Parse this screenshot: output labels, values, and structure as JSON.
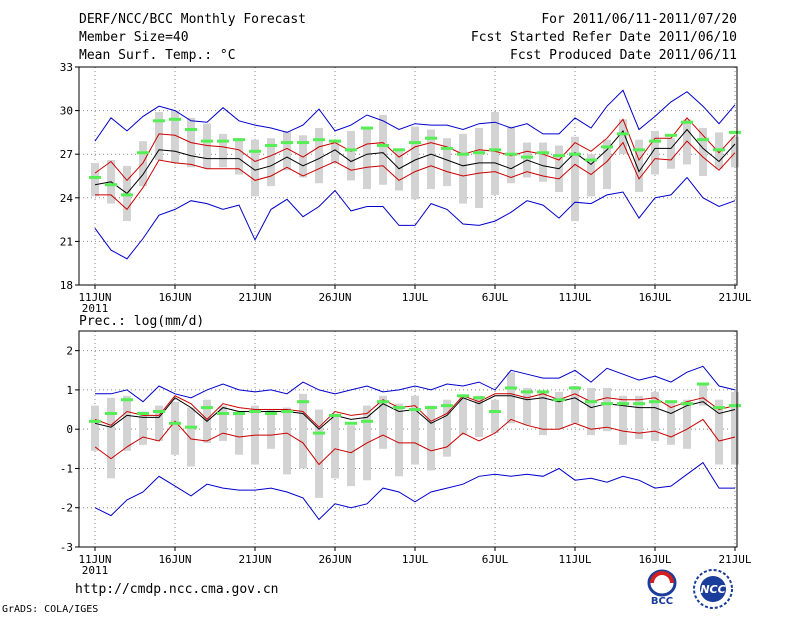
{
  "header": {
    "title": "DERF/NCC/BCC Monthly Forecast",
    "member_size": "Member Size=40",
    "variable": "Mean Surf. Temp.: °C",
    "period": "For 2011/06/11-2011/07/20",
    "refer_date": "Fcst Started Refer Date 2011/06/10",
    "produced_date": "Fcst Produced Date 2011/06/11"
  },
  "footer": {
    "url": "http://cmdp.ncc.cma.gov.cn",
    "grads": "GrADS: COLA/IGES",
    "logo_left": "BCC",
    "logo_right": "NCC"
  },
  "colors": {
    "max_min": "#0000cc",
    "percentile": "#cc0000",
    "mean": "#000000",
    "median": "#55ee55",
    "box": "#d3d3d3",
    "grid": "#888888"
  },
  "chart_data": [
    {
      "type": "line",
      "title": "Mean Surf. Temp.: °C",
      "ylabel": "°C",
      "ylim": [
        18,
        33
      ],
      "yticks": [
        18,
        21,
        24,
        27,
        30,
        33
      ],
      "xticks": [
        "11JUN",
        "16JUN",
        "21JUN",
        "26JUN",
        "1JUL",
        "6JUL",
        "11JUL",
        "16JUL",
        "21JUL"
      ],
      "xyear": "2011",
      "grid": true,
      "series": [
        {
          "name": "max",
          "values": [
            27.9,
            29.5,
            28.6,
            29.6,
            30.3,
            30.0,
            29.3,
            29.2,
            30.2,
            29.3,
            29.0,
            28.8,
            28.5,
            29.0,
            30.1,
            28.6,
            29.0,
            29.7,
            29.3,
            28.7,
            29.1,
            29.0,
            29.0,
            28.7,
            29.1,
            29.2,
            28.8,
            29.1,
            28.4,
            28.4,
            29.5,
            28.8,
            30.3,
            31.4,
            28.7,
            29.6,
            30.6,
            31.3,
            30.3,
            29.1,
            30.4
          ]
        },
        {
          "name": "p90",
          "values": [
            25.7,
            26.5,
            25.2,
            26.4,
            28.4,
            28.3,
            27.8,
            27.6,
            27.5,
            27.3,
            26.5,
            26.9,
            27.4,
            26.8,
            27.5,
            27.8,
            27.2,
            27.7,
            27.8,
            26.8,
            27.5,
            27.8,
            27.5,
            27.0,
            27.3,
            27.2,
            26.9,
            27.2,
            27.0,
            26.6,
            27.8,
            27.2,
            28.1,
            29.4,
            26.6,
            28.1,
            28.1,
            29.5,
            28.3,
            27.1,
            28.3
          ]
        },
        {
          "name": "mean",
          "values": [
            24.9,
            25.1,
            24.3,
            25.6,
            27.3,
            27.2,
            26.9,
            26.7,
            26.7,
            26.7,
            25.9,
            26.2,
            26.8,
            26.2,
            26.7,
            27.3,
            26.5,
            27.0,
            27.1,
            26.0,
            26.6,
            27.0,
            26.6,
            26.2,
            26.4,
            26.4,
            26.0,
            26.6,
            26.2,
            26.0,
            27.1,
            26.3,
            27.3,
            28.6,
            25.8,
            27.4,
            27.4,
            28.7,
            27.4,
            26.5,
            27.7
          ]
        },
        {
          "name": "p10",
          "values": [
            24.2,
            24.2,
            23.2,
            24.7,
            26.6,
            26.4,
            26.3,
            26.0,
            26.0,
            26.0,
            25.2,
            25.5,
            26.1,
            25.5,
            26.0,
            26.5,
            25.9,
            26.1,
            26.2,
            25.2,
            25.8,
            26.2,
            25.8,
            25.5,
            25.7,
            25.8,
            25.4,
            25.8,
            25.5,
            25.3,
            26.3,
            25.6,
            26.5,
            27.8,
            25.3,
            26.7,
            26.6,
            27.9,
            26.8,
            25.9,
            27.1
          ]
        },
        {
          "name": "min",
          "values": [
            21.9,
            20.4,
            19.8,
            21.2,
            22.8,
            23.2,
            23.8,
            23.6,
            23.2,
            23.5,
            21.1,
            23.2,
            23.9,
            22.7,
            23.4,
            24.5,
            23.1,
            23.4,
            23.4,
            22.1,
            22.1,
            23.6,
            23.2,
            22.2,
            22.1,
            22.4,
            23.0,
            23.8,
            23.5,
            22.6,
            23.7,
            23.6,
            24.2,
            24.4,
            22.6,
            24.0,
            24.2,
            25.4,
            24.0,
            23.4,
            23.8
          ]
        },
        {
          "name": "median",
          "values": [
            25.4,
            24.9,
            24.2,
            27.1,
            29.3,
            29.4,
            28.7,
            27.9,
            27.9,
            28.0,
            27.2,
            27.6,
            27.8,
            27.8,
            28.0,
            27.9,
            27.3,
            28.8,
            27.6,
            27.3,
            27.8,
            28.1,
            27.4,
            27.0,
            27.1,
            27.3,
            27.0,
            26.8,
            27.1,
            26.9,
            27.0,
            26.6,
            27.5,
            28.4,
            27.3,
            27.9,
            28.3,
            29.2,
            28.0,
            27.3,
            28.5
          ]
        },
        {
          "name": "box_high",
          "values": [
            26.4,
            26.6,
            26.2,
            27.9,
            29.9,
            30.0,
            29.5,
            29.1,
            28.4,
            28.1,
            28.0,
            28.1,
            28.6,
            28.3,
            28.8,
            28.0,
            28.6,
            28.8,
            29.7,
            27.4,
            28.9,
            28.7,
            28.1,
            28.4,
            28.8,
            29.9,
            28.9,
            27.8,
            27.8,
            27.6,
            28.2,
            27.0,
            28.0,
            29.4,
            28.0,
            28.6,
            28.1,
            29.4,
            28.8,
            28.5,
            28.2
          ]
        },
        {
          "name": "box_low",
          "values": [
            24.1,
            23.6,
            22.4,
            24.8,
            26.6,
            26.4,
            26.1,
            26.0,
            26.1,
            25.6,
            24.1,
            24.8,
            25.9,
            25.4,
            25.0,
            26.4,
            25.2,
            24.6,
            24.9,
            24.5,
            23.9,
            24.6,
            24.8,
            23.6,
            23.3,
            24.2,
            25.0,
            25.4,
            25.1,
            24.4,
            22.4,
            24.1,
            24.6,
            27.0,
            24.4,
            25.6,
            26.0,
            26.3,
            25.5,
            26.0,
            26.1
          ]
        }
      ]
    },
    {
      "type": "line",
      "title": "Prec.: log(mm/d)",
      "ylabel": "log(mm/d)",
      "ylim": [
        -3,
        2.5
      ],
      "yticks": [
        -3,
        -2,
        -1,
        0,
        1,
        2
      ],
      "xticks": [
        "11JUN",
        "16JUN",
        "21JUN",
        "26JUN",
        "1JUL",
        "6JUL",
        "11JUL",
        "16JUL",
        "21JUL"
      ],
      "xyear": "2011",
      "grid": true,
      "series": [
        {
          "name": "max",
          "values": [
            0.9,
            0.9,
            1.0,
            0.7,
            1.1,
            0.9,
            0.8,
            1.0,
            1.15,
            1.0,
            0.95,
            1.0,
            0.9,
            1.2,
            1.0,
            0.9,
            1.0,
            1.1,
            0.95,
            1.0,
            1.1,
            1.0,
            1.15,
            1.1,
            1.2,
            1.0,
            1.5,
            1.4,
            1.3,
            1.3,
            1.5,
            1.2,
            1.55,
            1.4,
            1.25,
            1.35,
            1.2,
            1.45,
            1.6,
            1.1,
            1.0
          ]
        },
        {
          "name": "p90",
          "values": [
            0.25,
            0.1,
            0.45,
            0.35,
            0.35,
            0.85,
            0.65,
            0.25,
            0.65,
            0.55,
            0.5,
            0.5,
            0.5,
            0.45,
            0.05,
            0.45,
            0.35,
            0.4,
            0.75,
            0.55,
            0.6,
            0.2,
            0.4,
            0.85,
            0.7,
            0.9,
            0.9,
            0.8,
            0.9,
            0.75,
            0.9,
            0.7,
            0.8,
            0.75,
            0.75,
            0.8,
            0.55,
            0.7,
            0.8,
            0.5,
            0.6
          ]
        },
        {
          "name": "mean",
          "values": [
            0.15,
            0.05,
            0.35,
            0.3,
            0.3,
            0.8,
            0.55,
            0.2,
            0.55,
            0.45,
            0.45,
            0.45,
            0.45,
            0.4,
            0.0,
            0.35,
            0.25,
            0.3,
            0.65,
            0.45,
            0.5,
            0.15,
            0.35,
            0.8,
            0.65,
            0.85,
            0.85,
            0.75,
            0.8,
            0.7,
            0.8,
            0.55,
            0.65,
            0.6,
            0.55,
            0.55,
            0.4,
            0.6,
            0.7,
            0.4,
            0.5
          ]
        },
        {
          "name": "p10",
          "values": [
            -0.45,
            -0.75,
            -0.45,
            -0.2,
            -0.3,
            0.2,
            -0.25,
            -0.3,
            -0.1,
            -0.2,
            -0.15,
            -0.15,
            -0.1,
            -0.35,
            -0.9,
            -0.5,
            -0.6,
            -0.35,
            -0.15,
            -0.35,
            -0.35,
            -0.55,
            -0.45,
            -0.1,
            -0.3,
            -0.1,
            0.25,
            0.1,
            0.0,
            0.0,
            0.15,
            0.0,
            0.05,
            -0.05,
            -0.1,
            -0.05,
            -0.2,
            0.0,
            0.25,
            -0.3,
            -0.2
          ]
        },
        {
          "name": "min",
          "values": [
            -2.0,
            -2.2,
            -1.8,
            -1.6,
            -1.2,
            -1.45,
            -1.7,
            -1.4,
            -1.5,
            -1.55,
            -1.55,
            -1.5,
            -1.6,
            -1.75,
            -2.3,
            -1.9,
            -2.0,
            -1.9,
            -1.5,
            -1.6,
            -1.85,
            -1.6,
            -1.5,
            -1.4,
            -1.2,
            -1.15,
            -1.2,
            -1.15,
            -1.2,
            -1.0,
            -1.3,
            -1.25,
            -1.35,
            -1.2,
            -1.3,
            -1.5,
            -1.45,
            -1.15,
            -0.85,
            -1.5,
            -1.5
          ]
        },
        {
          "name": "median",
          "values": [
            0.2,
            0.4,
            0.75,
            0.4,
            0.45,
            0.15,
            0.05,
            0.55,
            0.4,
            0.4,
            0.45,
            0.4,
            0.45,
            0.7,
            -0.1,
            0.35,
            0.15,
            0.2,
            0.7,
            0.55,
            0.5,
            0.55,
            0.6,
            0.85,
            0.8,
            0.45,
            1.05,
            0.95,
            0.95,
            0.75,
            1.05,
            0.7,
            0.65,
            0.65,
            0.65,
            0.7,
            0.7,
            0.65,
            1.15,
            0.55,
            0.6
          ]
        },
        {
          "name": "box_high",
          "values": [
            0.6,
            0.8,
            0.85,
            0.45,
            0.6,
            0.7,
            0.55,
            0.75,
            0.6,
            0.45,
            0.6,
            0.5,
            0.55,
            0.9,
            0.5,
            0.4,
            0.1,
            0.6,
            0.85,
            0.65,
            0.85,
            0.6,
            0.75,
            0.85,
            0.85,
            0.75,
            1.45,
            1.05,
            0.95,
            0.95,
            1.1,
            1.05,
            1.05,
            0.85,
            0.85,
            0.95,
            0.7,
            0.75,
            1.15,
            0.75,
            0.95
          ]
        },
        {
          "name": "box_low",
          "values": [
            -0.55,
            -1.25,
            -0.55,
            -0.4,
            -0.3,
            -0.65,
            -0.95,
            -0.35,
            -0.3,
            -0.65,
            -0.9,
            -0.5,
            -1.15,
            -1.0,
            -1.75,
            -1.25,
            -1.45,
            -1.3,
            -0.5,
            -1.2,
            -0.9,
            -1.05,
            -0.7,
            -0.15,
            -0.2,
            -0.1,
            0.15,
            0.1,
            -0.15,
            0.0,
            0.15,
            -0.15,
            -0.05,
            -0.4,
            -0.25,
            -0.3,
            -0.4,
            -0.5,
            0.6,
            -0.9,
            -0.9
          ]
        }
      ]
    }
  ]
}
